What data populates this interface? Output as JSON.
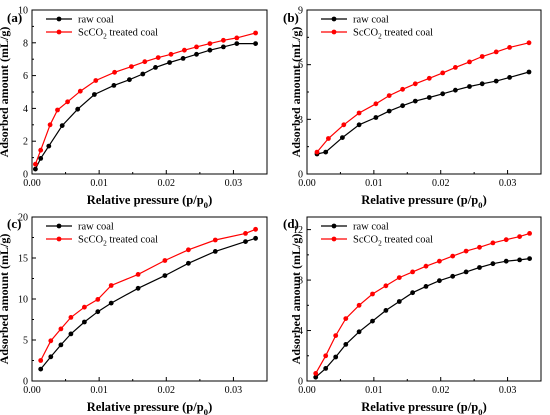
{
  "figure": {
    "x_label": "Relative pressure (p/p0)",
    "y_label": "Adsorbed amount (mL/g)"
  },
  "chart_data": [
    {
      "panel_label": "(a)",
      "type": "line",
      "xlim": [
        0,
        0.035
      ],
      "ylim": [
        0,
        10
      ],
      "x_ticks": [
        "0.00",
        "0.01",
        "0.02",
        "0.03"
      ],
      "y_ticks": [
        "0",
        "2",
        "4",
        "6",
        "8",
        "10"
      ],
      "xlabel": "Relative pressure (p/p0)",
      "ylabel": "Adsorbed amount (mL/g)",
      "legend_position": "top-left",
      "series": [
        {
          "name": "raw coal",
          "color": "#000000",
          "marker": "circle",
          "x": [
            0.0005,
            0.0013,
            0.0025,
            0.0045,
            0.0068,
            0.0093,
            0.0122,
            0.0145,
            0.0165,
            0.0184,
            0.0205,
            0.0225,
            0.0245,
            0.0265,
            0.0285,
            0.0305,
            0.0333
          ],
          "y": [
            0.3,
            0.95,
            1.7,
            2.95,
            3.95,
            4.85,
            5.4,
            5.75,
            6.1,
            6.5,
            6.8,
            7.05,
            7.3,
            7.55,
            7.75,
            7.95,
            7.95
          ]
        },
        {
          "name": "ScCO2 treated coal",
          "color": "#ff0000",
          "marker": "circle",
          "x": [
            0.0005,
            0.0013,
            0.0027,
            0.0038,
            0.0053,
            0.0072,
            0.0095,
            0.0123,
            0.0148,
            0.0168,
            0.0188,
            0.0207,
            0.0227,
            0.0245,
            0.0265,
            0.0285,
            0.0305,
            0.0333
          ],
          "y": [
            0.6,
            1.45,
            3.0,
            3.9,
            4.4,
            5.05,
            5.7,
            6.2,
            6.55,
            6.85,
            7.1,
            7.3,
            7.55,
            7.75,
            7.95,
            8.15,
            8.3,
            8.6
          ]
        }
      ]
    },
    {
      "panel_label": "(b)",
      "type": "line",
      "xlim": [
        0,
        0.035
      ],
      "ylim": [
        0,
        9
      ],
      "x_ticks": [
        "0.00",
        "0.01",
        "0.02",
        "0.03"
      ],
      "y_ticks": [
        "0",
        "3",
        "6",
        "9"
      ],
      "xlabel": "Relative pressure (p/p0)",
      "ylabel": "Adsorbed amount (mL/g)",
      "legend_position": "top-left",
      "series": [
        {
          "name": "raw coal",
          "color": "#000000",
          "marker": "circle",
          "x": [
            0.0015,
            0.0028,
            0.0053,
            0.0078,
            0.0103,
            0.0123,
            0.0143,
            0.0162,
            0.0183,
            0.0203,
            0.0222,
            0.0243,
            0.0262,
            0.0283,
            0.0303,
            0.0332
          ],
          "y": [
            1.1,
            1.2,
            2.0,
            2.7,
            3.1,
            3.45,
            3.75,
            4.0,
            4.2,
            4.4,
            4.6,
            4.8,
            4.95,
            5.1,
            5.3,
            5.6
          ]
        },
        {
          "name": "ScCO2 treated coal",
          "color": "#ff0000",
          "marker": "circle",
          "x": [
            0.0015,
            0.0032,
            0.0055,
            0.0078,
            0.0103,
            0.0123,
            0.0143,
            0.0162,
            0.0183,
            0.0203,
            0.0222,
            0.0243,
            0.0262,
            0.0283,
            0.0303,
            0.0332
          ],
          "y": [
            1.2,
            1.95,
            2.7,
            3.35,
            3.85,
            4.3,
            4.65,
            4.95,
            5.25,
            5.55,
            5.85,
            6.15,
            6.45,
            6.7,
            6.95,
            7.2
          ]
        }
      ]
    },
    {
      "panel_label": "(c)",
      "type": "line",
      "xlim": [
        0,
        0.035
      ],
      "ylim": [
        0,
        20
      ],
      "x_ticks": [
        "0.00",
        "0.01",
        "0.02",
        "0.03"
      ],
      "y_ticks": [
        "0",
        "5",
        "10",
        "15",
        "20"
      ],
      "xlabel": "Relative pressure (p/p0)",
      "ylabel": "Adsorbed amount (mL/g)",
      "legend_position": "top-left",
      "series": [
        {
          "name": "raw coal",
          "color": "#000000",
          "marker": "circle",
          "x": [
            0.0013,
            0.0028,
            0.0043,
            0.0058,
            0.0078,
            0.0098,
            0.0118,
            0.0158,
            0.0198,
            0.0233,
            0.0273,
            0.0318,
            0.0333
          ],
          "y": [
            1.45,
            2.95,
            4.4,
            5.75,
            7.2,
            8.45,
            9.5,
            11.3,
            12.85,
            14.35,
            15.8,
            17.0,
            17.4
          ]
        },
        {
          "name": "ScCO2 treated coal",
          "color": "#ff0000",
          "marker": "circle",
          "x": [
            0.0013,
            0.0028,
            0.0043,
            0.0058,
            0.0078,
            0.0098,
            0.0118,
            0.0158,
            0.0198,
            0.0233,
            0.0273,
            0.0318,
            0.0333
          ],
          "y": [
            2.5,
            4.9,
            6.35,
            7.75,
            9.0,
            9.95,
            11.65,
            13.0,
            14.7,
            16.0,
            17.2,
            18.0,
            18.5
          ]
        }
      ]
    },
    {
      "panel_label": "(d)",
      "type": "line",
      "xlim": [
        0,
        0.035
      ],
      "ylim": [
        0,
        13
      ],
      "x_ticks": [
        "0.00",
        "0.01",
        "0.02",
        "0.03"
      ],
      "y_ticks": [
        "0",
        "4",
        "8",
        "12"
      ],
      "xlabel": "Relative pressure (p/p0)",
      "ylabel": "Adsorbed amount (mL/g)",
      "legend_position": "top-left",
      "series": [
        {
          "name": "raw coal",
          "color": "#000000",
          "marker": "circle",
          "x": [
            0.0013,
            0.0028,
            0.0043,
            0.0058,
            0.0078,
            0.0098,
            0.0118,
            0.0138,
            0.0158,
            0.0178,
            0.0198,
            0.0218,
            0.0238,
            0.0258,
            0.0278,
            0.0298,
            0.0318,
            0.0333
          ],
          "y": [
            0.3,
            1.0,
            1.9,
            2.9,
            3.9,
            4.75,
            5.6,
            6.3,
            7.0,
            7.5,
            7.95,
            8.3,
            8.65,
            9.0,
            9.3,
            9.5,
            9.6,
            9.7
          ]
        },
        {
          "name": "ScCO2 treated coal",
          "color": "#ff0000",
          "marker": "circle",
          "x": [
            0.0013,
            0.0028,
            0.0043,
            0.0058,
            0.0078,
            0.0098,
            0.0118,
            0.0138,
            0.0158,
            0.0178,
            0.0198,
            0.0218,
            0.0238,
            0.0258,
            0.0278,
            0.0298,
            0.0318,
            0.0333
          ],
          "y": [
            0.6,
            2.0,
            3.6,
            4.95,
            6.0,
            6.9,
            7.55,
            8.2,
            8.65,
            9.1,
            9.5,
            9.9,
            10.3,
            10.6,
            10.95,
            11.2,
            11.45,
            11.7
          ]
        }
      ]
    }
  ]
}
